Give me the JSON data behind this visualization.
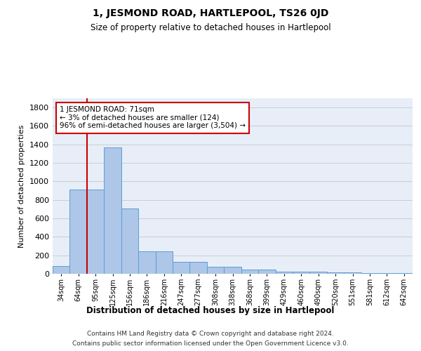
{
  "title": "1, JESMOND ROAD, HARTLEPOOL, TS26 0JD",
  "subtitle": "Size of property relative to detached houses in Hartlepool",
  "xlabel": "Distribution of detached houses by size in Hartlepool",
  "ylabel": "Number of detached properties",
  "categories": [
    "34sqm",
    "64sqm",
    "95sqm",
    "125sqm",
    "156sqm",
    "186sqm",
    "216sqm",
    "247sqm",
    "277sqm",
    "308sqm",
    "338sqm",
    "368sqm",
    "399sqm",
    "429sqm",
    "460sqm",
    "490sqm",
    "520sqm",
    "551sqm",
    "581sqm",
    "612sqm",
    "642sqm"
  ],
  "values": [
    80,
    910,
    910,
    1370,
    710,
    245,
    245,
    130,
    130,
    75,
    75,
    45,
    45,
    25,
    25,
    25,
    18,
    18,
    10,
    5,
    5
  ],
  "bar_color": "#aec6e8",
  "bar_edge_color": "#5a9fd4",
  "annotation_line1": "1 JESMOND ROAD: 71sqm",
  "annotation_line2": "← 3% of detached houses are smaller (124)",
  "annotation_line3": "96% of semi-detached houses are larger (3,504) →",
  "annotation_box_color": "#ffffff",
  "annotation_box_edge_color": "#cc0000",
  "red_line_color": "#cc0000",
  "grid_color": "#cccccc",
  "background_color": "#e8eef8",
  "footer_line1": "Contains HM Land Registry data © Crown copyright and database right 2024.",
  "footer_line2": "Contains public sector information licensed under the Open Government Licence v3.0.",
  "ylim": [
    0,
    1900
  ],
  "yticks": [
    0,
    200,
    400,
    600,
    800,
    1000,
    1200,
    1400,
    1600,
    1800
  ]
}
